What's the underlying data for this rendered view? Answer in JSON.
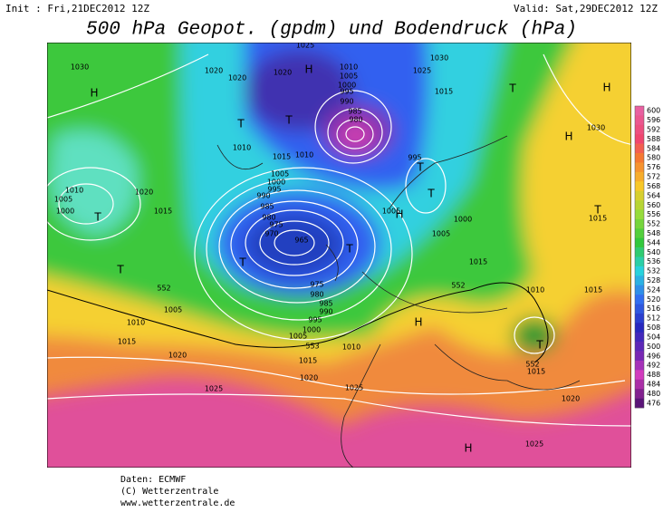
{
  "header": {
    "init": "Init : Fri,21DEC2012 12Z",
    "valid": "Valid: Sat,29DEC2012 12Z",
    "title": "500 hPa Geopot. (gpdm) und Bodendruck (hPa)"
  },
  "map": {
    "pressure_labels": [
      1030,
      1020,
      1020,
      1025,
      1020,
      1010,
      1005,
      1000,
      995,
      990,
      985,
      980,
      1030,
      1025,
      1015,
      1025,
      1010,
      1015,
      1010,
      995,
      1010,
      1005,
      1000,
      1020,
      1015,
      1005,
      1000,
      995,
      990,
      985,
      980,
      975,
      970,
      965,
      1005,
      1000,
      1005,
      1015,
      975,
      980,
      985,
      990,
      995,
      1000,
      1005,
      552,
      1005,
      1010,
      1015,
      553,
      1010,
      552,
      1010,
      1015,
      1015,
      1015,
      1020,
      1020,
      1025,
      1025,
      552,
      1015,
      1020,
      1025,
      1030
    ],
    "centers": [
      "H",
      "H",
      "H",
      "H",
      "H",
      "H",
      "H",
      "T",
      "T",
      "T",
      "T",
      "T",
      "T",
      "T",
      "T",
      "T",
      "T",
      "T"
    ]
  },
  "colorbar": {
    "values": [
      600,
      596,
      592,
      588,
      584,
      580,
      576,
      572,
      568,
      564,
      560,
      556,
      552,
      548,
      544,
      540,
      536,
      532,
      528,
      524,
      520,
      516,
      512,
      508,
      504,
      500,
      496,
      492,
      488,
      484,
      480,
      476
    ]
  },
  "footer": {
    "source": "Daten: ECMWF",
    "copyright": "(C) Wetterzentrale",
    "url": "www.wetterzentrale.de"
  }
}
